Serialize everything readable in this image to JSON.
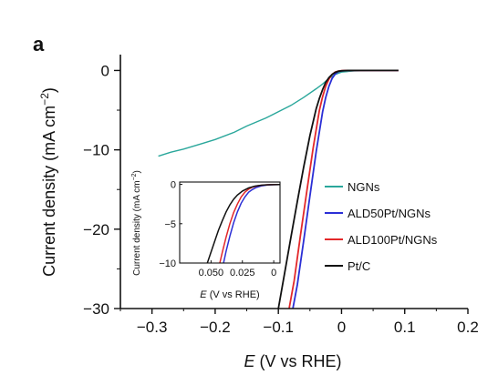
{
  "panel_label": "a",
  "colors": {
    "NGNs": "#2aa79b",
    "ALD50Pt/NGNs": "#2b2fd6",
    "ALD100Pt/NGNs": "#e3282a",
    "Pt/C": "#111111"
  },
  "chart_data": [
    {
      "id": "main",
      "type": "line",
      "xlabel_var": "E",
      "xlabel_rest": " (V vs RHE)",
      "ylabel": "Current density (mA cm",
      "ylabel_sup": "−2",
      "ylabel_close": ")",
      "xlim": [
        -0.35,
        0.2
      ],
      "ylim": [
        -30,
        2
      ],
      "x_ticks": [
        -0.3,
        -0.2,
        -0.1,
        0,
        0.1,
        0.2
      ],
      "x_tick_labels": [
        "−0.3",
        "−0.2",
        "−0.1",
        "0",
        "0.1",
        "0.2"
      ],
      "y_ticks": [
        0,
        -10,
        -20,
        -30
      ],
      "y_tick_labels": [
        "0",
        "−10",
        "−20",
        "−30"
      ],
      "legend": [
        "NGNs",
        "ALD50Pt/NGNs",
        "ALD100Pt/NGNs",
        "Pt/C"
      ],
      "legend_position": "center-right",
      "series": [
        {
          "name": "NGNs",
          "x": [
            -0.29,
            -0.27,
            -0.25,
            -0.22,
            -0.2,
            -0.17,
            -0.15,
            -0.12,
            -0.1,
            -0.08,
            -0.06,
            -0.04,
            -0.03,
            -0.02,
            -0.01,
            0.0,
            0.02,
            0.05,
            0.09
          ],
          "y": [
            -10.8,
            -10.3,
            -9.9,
            -9.2,
            -8.7,
            -7.8,
            -7.0,
            -6.0,
            -5.2,
            -4.4,
            -3.4,
            -2.3,
            -1.7,
            -1.0,
            -0.5,
            -0.2,
            -0.05,
            -0.02,
            0.0
          ]
        },
        {
          "name": "ALD50Pt/NGNs",
          "x": [
            -0.077,
            -0.07,
            -0.06,
            -0.05,
            -0.04,
            -0.03,
            -0.025,
            -0.02,
            -0.015,
            -0.01,
            -0.005,
            0.0,
            0.01,
            0.03,
            0.06,
            0.09
          ],
          "y": [
            -30,
            -27,
            -21.5,
            -15.8,
            -10.2,
            -5.2,
            -3.4,
            -2.0,
            -1.0,
            -0.45,
            -0.15,
            -0.05,
            0.0,
            0.0,
            0.0,
            0.0
          ]
        },
        {
          "name": "ALD100Pt/NGNs",
          "x": [
            -0.083,
            -0.075,
            -0.065,
            -0.055,
            -0.045,
            -0.035,
            -0.03,
            -0.025,
            -0.02,
            -0.015,
            -0.01,
            -0.005,
            0.0,
            0.01,
            0.03,
            0.06,
            0.09
          ],
          "y": [
            -30,
            -26.5,
            -20.8,
            -15.2,
            -9.8,
            -5.0,
            -3.3,
            -2.0,
            -1.1,
            -0.5,
            -0.2,
            -0.08,
            -0.02,
            0.0,
            0.0,
            0.0,
            0.0
          ]
        },
        {
          "name": "Pt/C",
          "x": [
            -0.1,
            -0.09,
            -0.08,
            -0.07,
            -0.06,
            -0.05,
            -0.04,
            -0.035,
            -0.03,
            -0.025,
            -0.02,
            -0.015,
            -0.01,
            -0.005,
            0.0,
            0.01,
            0.03,
            0.06,
            0.09
          ],
          "y": [
            -30,
            -25.5,
            -21.0,
            -16.5,
            -12.2,
            -8.2,
            -4.8,
            -3.5,
            -2.4,
            -1.5,
            -0.9,
            -0.5,
            -0.25,
            -0.1,
            -0.04,
            0.0,
            0.0,
            0.0,
            0.0
          ]
        }
      ]
    },
    {
      "id": "inset",
      "type": "line",
      "xlabel_var": "E",
      "xlabel_rest": " (V vs RHE)",
      "ylabel": "Current density (mA cm",
      "ylabel_sup": "−2",
      "ylabel_close": ")",
      "xlim": [
        0.075,
        -0.005
      ],
      "ylim": [
        -10,
        0.3
      ],
      "x_ticks": [
        0.05,
        0.025,
        0
      ],
      "x_tick_labels": [
        "0.050",
        "0.025",
        "0"
      ],
      "y_ticks": [
        0,
        -5,
        -10
      ],
      "y_tick_labels": [
        "0",
        "−5",
        "−10"
      ],
      "series": [
        {
          "name": "ALD50Pt/NGNs",
          "x": [
            0.04,
            0.038,
            0.035,
            0.032,
            0.029,
            0.026,
            0.023,
            0.02,
            0.017,
            0.014,
            0.01,
            0.005,
            0.0,
            -0.005
          ],
          "y": [
            -10,
            -8.5,
            -6.6,
            -4.9,
            -3.5,
            -2.4,
            -1.6,
            -1.0,
            -0.65,
            -0.4,
            -0.2,
            -0.08,
            -0.03,
            -0.02
          ]
        },
        {
          "name": "ALD100Pt/NGNs",
          "x": [
            0.043,
            0.041,
            0.038,
            0.035,
            0.032,
            0.029,
            0.026,
            0.023,
            0.02,
            0.017,
            0.013,
            0.008,
            0.003,
            -0.005
          ],
          "y": [
            -10,
            -8.6,
            -6.7,
            -5.0,
            -3.6,
            -2.5,
            -1.6,
            -1.0,
            -0.6,
            -0.35,
            -0.18,
            -0.08,
            -0.03,
            -0.02
          ]
        },
        {
          "name": "Pt/C",
          "x": [
            0.053,
            0.05,
            0.047,
            0.044,
            0.041,
            0.038,
            0.035,
            0.032,
            0.029,
            0.025,
            0.02,
            0.015,
            0.01,
            0.005,
            -0.005
          ],
          "y": [
            -10,
            -8.6,
            -7.2,
            -5.8,
            -4.6,
            -3.5,
            -2.6,
            -1.9,
            -1.35,
            -0.85,
            -0.45,
            -0.22,
            -0.1,
            -0.05,
            -0.02
          ]
        }
      ]
    }
  ]
}
